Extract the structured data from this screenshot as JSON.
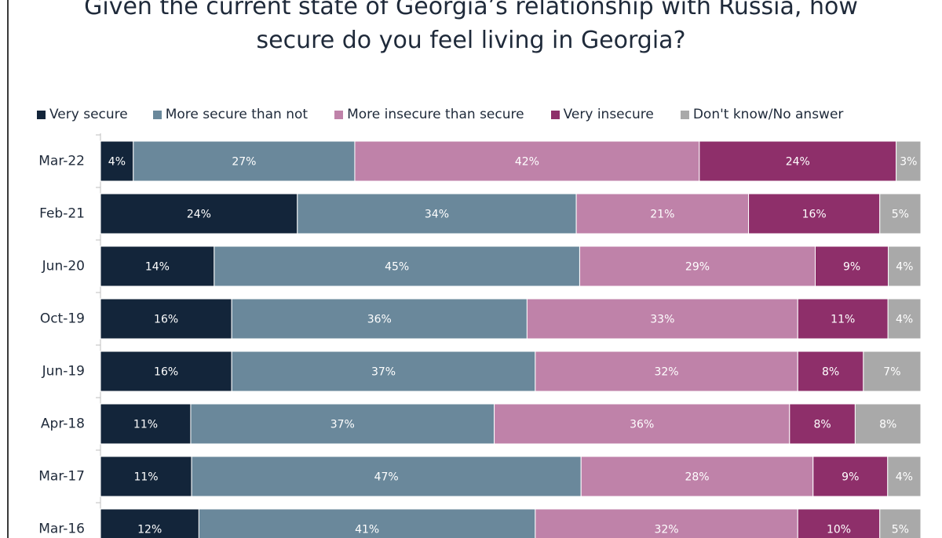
{
  "chart_data": {
    "type": "bar",
    "orientation": "horizontal",
    "stacked": true,
    "normalized": true,
    "title": "Given the current state of Georgia’s relationship with Russia, how secure do you feel living in Georgia?",
    "title_lines": [
      "Given the current state of Georgia’s relationship with Russia, how",
      "secure do you feel living in Georgia?"
    ],
    "categories": [
      "Mar-22",
      "Feb-21",
      "Jun-20",
      "Oct-19",
      "Jun-19",
      "Apr-18",
      "Mar-17",
      "Mar-16"
    ],
    "series": [
      {
        "name": "Very secure",
        "color": "#13253a",
        "label_color": "#ffffff",
        "values": [
          4,
          24,
          14,
          16,
          16,
          11,
          11,
          12
        ],
        "labels": [
          "4%",
          "24%",
          "14%",
          "16%",
          "16%",
          "11%",
          "11%",
          "12%"
        ]
      },
      {
        "name": "More secure than not",
        "color": "#6a889b",
        "label_color": "#ffffff",
        "values": [
          27,
          34,
          45,
          36,
          37,
          37,
          47,
          41
        ],
        "labels": [
          "27%",
          "34%",
          "45%",
          "36%",
          "37%",
          "37%",
          "47%",
          "41%"
        ]
      },
      {
        "name": "More insecure than secure",
        "color": "#bf82a9",
        "label_color": "#ffffff",
        "values": [
          42,
          21,
          29,
          33,
          32,
          36,
          28,
          32
        ],
        "labels": [
          "42%",
          "21%",
          "29%",
          "33%",
          "32%",
          "36%",
          "28%",
          "32%"
        ]
      },
      {
        "name": "Very insecure",
        "color": "#8e2f6a",
        "label_color": "#ffffff",
        "values": [
          24,
          16,
          9,
          11,
          8,
          8,
          9,
          10
        ],
        "labels": [
          "24%",
          "16%",
          "9%",
          "11%",
          "8%",
          "8%",
          "9%",
          "10%"
        ]
      },
      {
        "name": "Don't know/No answer",
        "color": "#a9a9a9",
        "label_color": "#ffffff",
        "values": [
          3,
          5,
          4,
          4,
          7,
          8,
          4,
          5
        ],
        "labels": [
          "3%",
          "5%",
          "4%",
          "4%",
          "7%",
          "8%",
          "4%",
          "5%"
        ]
      }
    ],
    "legend_position": "top",
    "grid": false,
    "xlabel": "",
    "ylabel": ""
  }
}
